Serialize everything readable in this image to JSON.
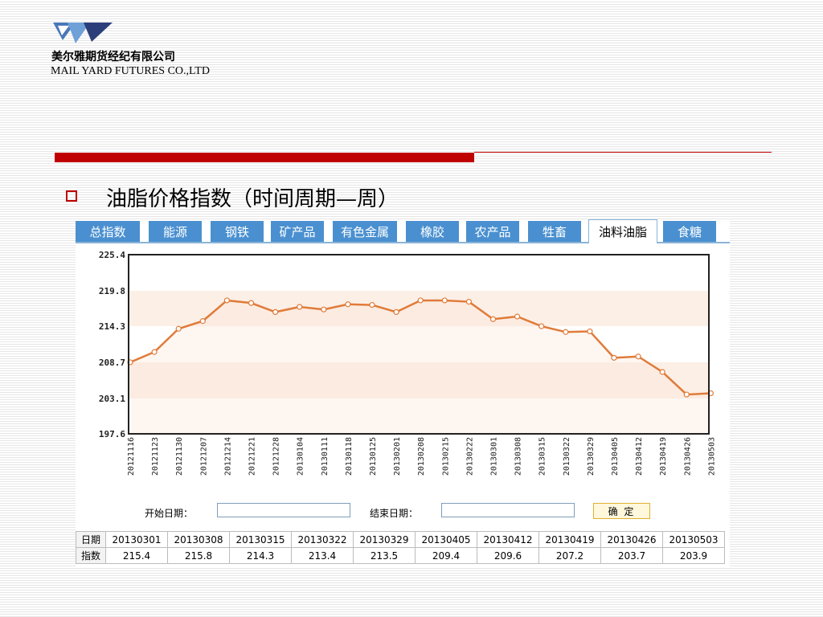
{
  "header": {
    "company_cn": "美尔雅期货经纪有限公司",
    "company_en": "MAIL YARD FUTURES CO.,LTD",
    "logo_icon": "company-logo-icon"
  },
  "slide": {
    "title": "油脂价格指数（时间周期—周）",
    "accent_color": "#c00000"
  },
  "tabs": [
    {
      "label": "总指数",
      "active": false
    },
    {
      "label": "能源",
      "active": false
    },
    {
      "label": "钢铁",
      "active": false
    },
    {
      "label": "矿产品",
      "active": false
    },
    {
      "label": "有色金属",
      "active": false
    },
    {
      "label": "橡胶",
      "active": false
    },
    {
      "label": "农产品",
      "active": false
    },
    {
      "label": "牲畜",
      "active": false
    },
    {
      "label": "油料油脂",
      "active": true
    },
    {
      "label": "食糖",
      "active": false
    }
  ],
  "form": {
    "start_label": "开始日期：",
    "start_value": "",
    "end_label": "结束日期：",
    "end_value": "",
    "confirm_label": "确 定"
  },
  "table": {
    "date_label": "日期",
    "index_label": "指数",
    "dates": [
      "20130301",
      "20130308",
      "20130315",
      "20130322",
      "20130329",
      "20130405",
      "20130412",
      "20130419",
      "20130426",
      "20130503"
    ],
    "values": [
      "215.4",
      "215.8",
      "214.3",
      "213.4",
      "213.5",
      "209.4",
      "209.6",
      "207.2",
      "203.7",
      "203.9"
    ]
  },
  "chart_data": {
    "type": "line",
    "x": [
      "20121116",
      "20121123",
      "20121130",
      "20121207",
      "20121214",
      "20121221",
      "20121228",
      "20130104",
      "20130111",
      "20130118",
      "20130125",
      "20130201",
      "20130208",
      "20130215",
      "20130222",
      "20130301",
      "20130308",
      "20130315",
      "20130322",
      "20130329",
      "20130405",
      "20130412",
      "20130419",
      "20130426",
      "20130503"
    ],
    "values": [
      208.7,
      210.3,
      213.9,
      215.1,
      218.3,
      217.9,
      216.5,
      217.3,
      216.9,
      217.7,
      217.6,
      216.5,
      218.3,
      218.3,
      218.1,
      215.4,
      215.8,
      214.3,
      213.4,
      213.5,
      209.4,
      209.6,
      207.2,
      203.7,
      203.9
    ],
    "ylim": [
      197.6,
      225.4
    ],
    "yticks": [
      "225.4",
      "219.8",
      "214.3",
      "208.7",
      "203.1",
      "197.6"
    ],
    "line_color": "#e07b39",
    "band_color": "#fcefe6",
    "grid": false,
    "title": "",
    "xlabel": "",
    "ylabel": ""
  }
}
